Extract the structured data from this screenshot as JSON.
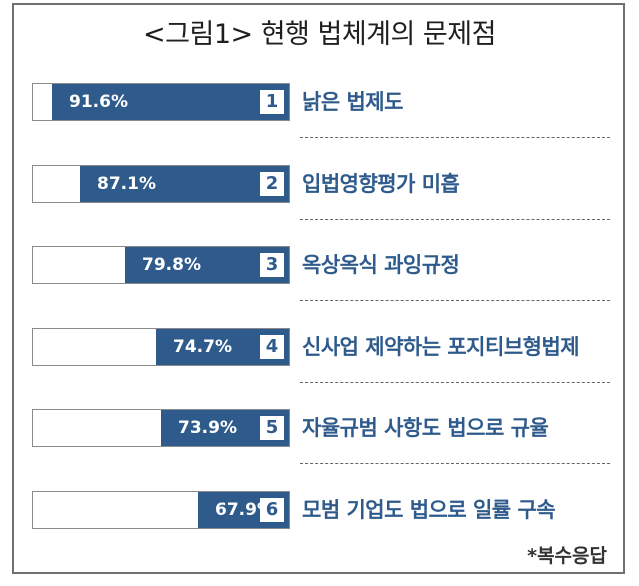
{
  "title": "<그림1> 현행 법체계의 문제점",
  "source": "*복수응답",
  "chart_data": {
    "type": "bar",
    "orientation": "horizontal",
    "title": "<그림1> 현행 법체계의 문제점",
    "unit": "%",
    "xlim": [
      0,
      100
    ],
    "bar_color": "#2f5b8c",
    "categories": [
      "낡은 법제도",
      "입법영향평가 미흡",
      "옥상옥식 과잉규정",
      "신사업 제약하는 포지티브형법제",
      "자율규범 사항도 법으로 규율",
      "모범 기업도 법으로 일률 구속"
    ],
    "ranks": [
      "1",
      "2",
      "3",
      "4",
      "5",
      "6"
    ],
    "values": [
      91.6,
      87.1,
      79.8,
      74.7,
      73.9,
      67.9
    ],
    "value_labels": [
      "91.6%",
      "87.1%",
      "79.8%",
      "74.7%",
      "73.9%",
      "67.9%"
    ]
  }
}
